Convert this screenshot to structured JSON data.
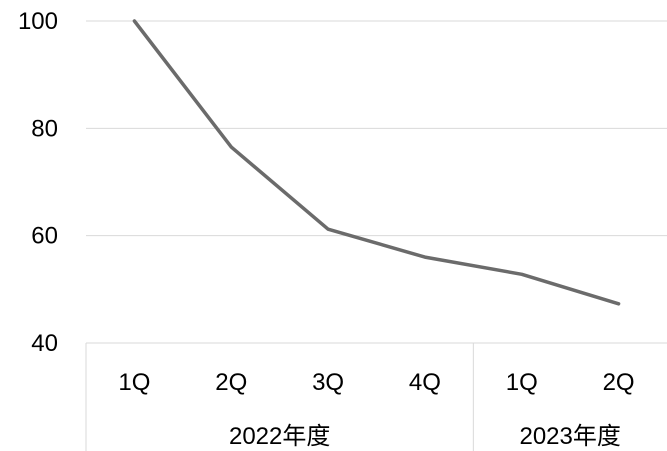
{
  "chart_data": {
    "type": "line",
    "title": "",
    "xlabel": "",
    "ylabel": "",
    "ylim": [
      40,
      100
    ],
    "yticks": [
      "40",
      "60",
      "80",
      "100"
    ],
    "grid": true,
    "legend": "none",
    "groups": [
      {
        "label": "2022年度",
        "categories": [
          "1Q",
          "2Q",
          "3Q",
          "4Q"
        ]
      },
      {
        "label": "2023年度",
        "categories": [
          "1Q",
          "2Q"
        ]
      }
    ],
    "series": [
      {
        "values": [
          100,
          76.5,
          61.2,
          56.0,
          52.8,
          47.3
        ],
        "color": "#6b6b6b"
      }
    ],
    "colors": {
      "grid": "#d9d9d9",
      "axis": "#d9d9d9",
      "line": "#6b6b6b"
    }
  }
}
